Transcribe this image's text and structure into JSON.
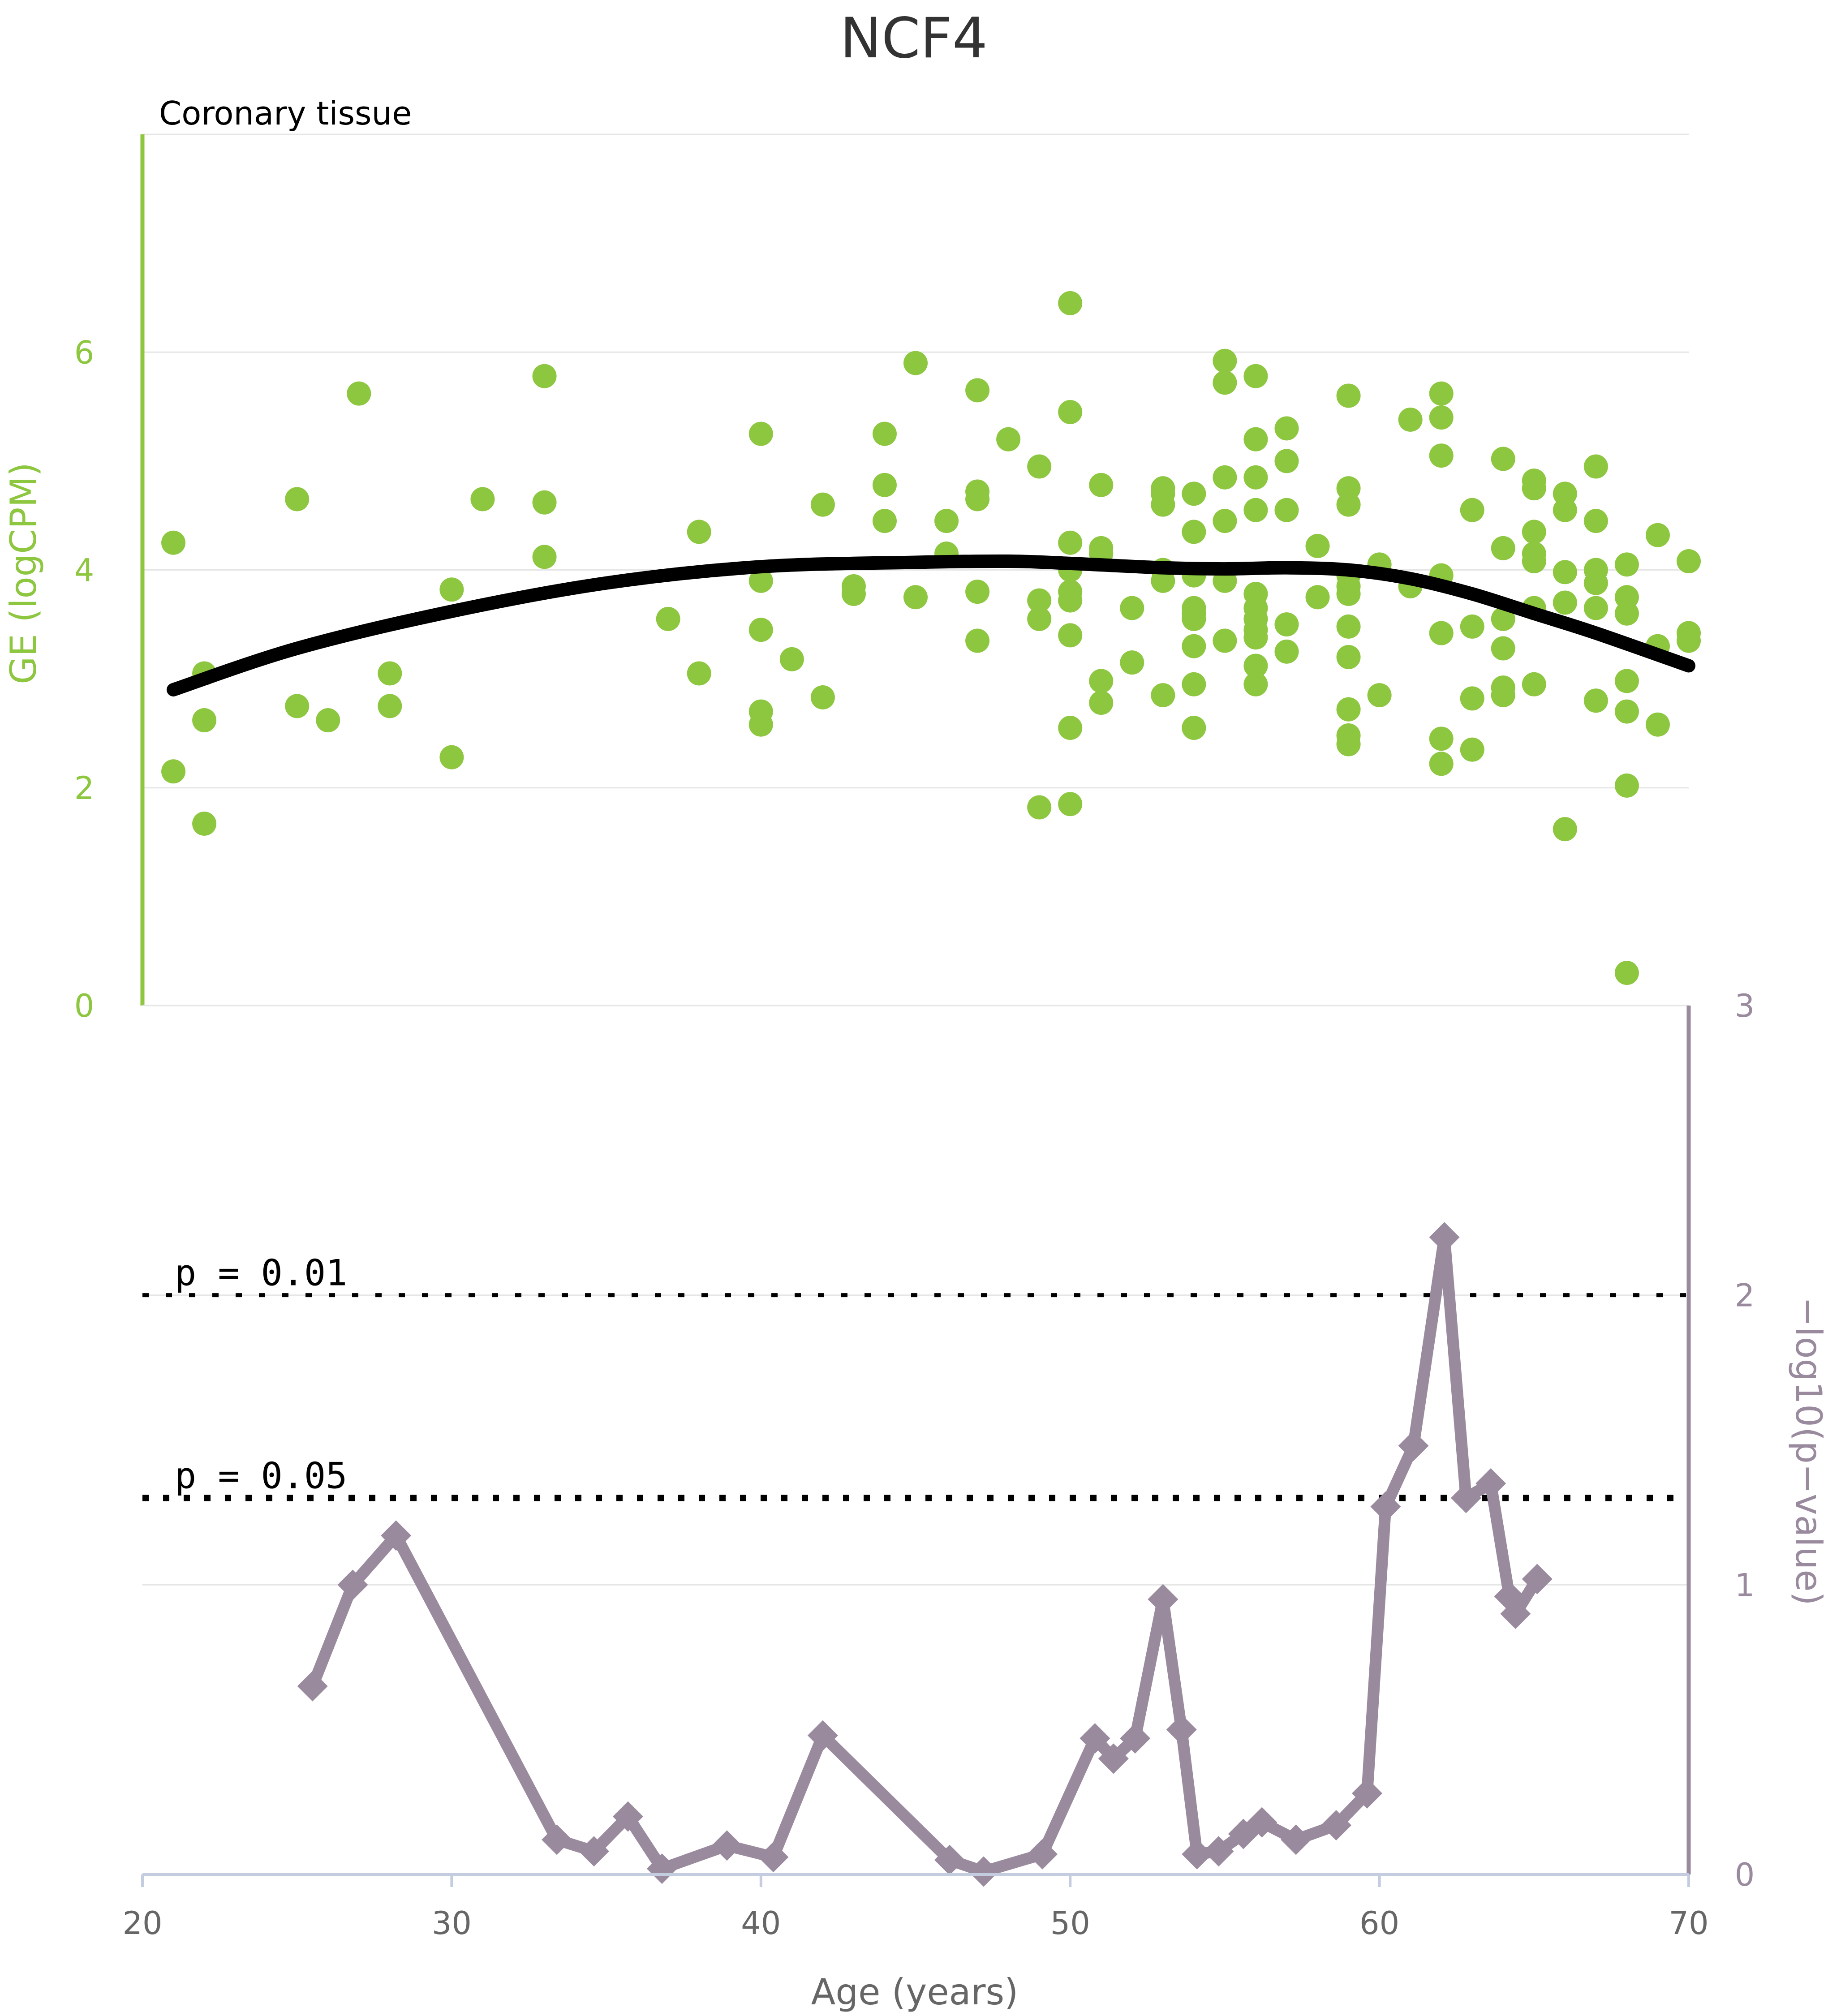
{
  "title": "NCF4",
  "panel_label": "Coronary tissue",
  "colors": {
    "ge": "#8DC63F",
    "pval": "#9A8A9E",
    "fit": "#000000",
    "grid": "#E6E6E6",
    "text": "#333333"
  },
  "chart_data": [
    {
      "type": "scatter",
      "ylabel": "GE (logCPM)",
      "xlim": [
        20,
        70
      ],
      "ylim": [
        0,
        8
      ],
      "yticks": [
        0,
        2,
        4,
        6
      ],
      "grid": true,
      "points": [
        [
          21,
          4.25
        ],
        [
          21,
          2.15
        ],
        [
          22,
          3.05
        ],
        [
          22,
          2.62
        ],
        [
          22,
          1.67
        ],
        [
          25,
          4.65
        ],
        [
          25,
          2.75
        ],
        [
          26,
          2.62
        ],
        [
          27,
          5.62
        ],
        [
          28,
          3.05
        ],
        [
          28,
          2.75
        ],
        [
          30,
          3.82
        ],
        [
          30,
          2.28
        ],
        [
          31,
          4.65
        ],
        [
          33,
          5.78
        ],
        [
          33,
          4.62
        ],
        [
          33,
          4.12
        ],
        [
          37,
          3.55
        ],
        [
          38,
          4.35
        ],
        [
          38,
          3.05
        ],
        [
          40,
          5.25
        ],
        [
          40,
          3.9
        ],
        [
          40,
          3.45
        ],
        [
          40,
          2.7
        ],
        [
          40,
          2.58
        ],
        [
          41,
          3.18
        ],
        [
          42,
          4.6
        ],
        [
          42,
          2.83
        ],
        [
          43,
          3.85
        ],
        [
          43,
          3.78
        ],
        [
          44,
          5.25
        ],
        [
          44,
          4.78
        ],
        [
          44,
          4.45
        ],
        [
          45,
          5.9
        ],
        [
          45,
          3.75
        ],
        [
          46,
          4.45
        ],
        [
          46,
          4.15
        ],
        [
          47,
          5.65
        ],
        [
          47,
          4.72
        ],
        [
          47,
          4.65
        ],
        [
          47,
          3.8
        ],
        [
          47,
          3.35
        ],
        [
          48,
          5.2
        ],
        [
          49,
          4.95
        ],
        [
          49,
          3.72
        ],
        [
          49,
          3.55
        ],
        [
          49,
          1.82
        ],
        [
          50,
          6.45
        ],
        [
          50,
          5.45
        ],
        [
          50,
          4.25
        ],
        [
          50,
          4.0
        ],
        [
          50,
          3.8
        ],
        [
          50,
          3.72
        ],
        [
          50,
          3.4
        ],
        [
          50,
          2.55
        ],
        [
          50,
          1.85
        ],
        [
          51,
          4.78
        ],
        [
          51,
          4.2
        ],
        [
          51,
          4.15
        ],
        [
          51,
          2.98
        ],
        [
          51,
          2.78
        ],
        [
          52,
          3.65
        ],
        [
          52,
          3.15
        ],
        [
          53,
          4.75
        ],
        [
          53,
          4.7
        ],
        [
          53,
          4.6
        ],
        [
          53,
          4.0
        ],
        [
          53,
          3.9
        ],
        [
          53,
          2.85
        ],
        [
          54,
          4.7
        ],
        [
          54,
          4.35
        ],
        [
          54,
          3.95
        ],
        [
          54,
          3.65
        ],
        [
          54,
          3.6
        ],
        [
          54,
          3.55
        ],
        [
          54,
          3.3
        ],
        [
          54,
          2.95
        ],
        [
          54,
          2.55
        ],
        [
          55,
          5.92
        ],
        [
          55,
          5.72
        ],
        [
          55,
          4.85
        ],
        [
          55,
          4.45
        ],
        [
          55,
          3.9
        ],
        [
          55,
          3.35
        ],
        [
          56,
          5.78
        ],
        [
          56,
          5.2
        ],
        [
          56,
          4.85
        ],
        [
          56,
          4.55
        ],
        [
          56,
          3.78
        ],
        [
          56,
          3.65
        ],
        [
          56,
          3.55
        ],
        [
          56,
          3.45
        ],
        [
          56,
          3.38
        ],
        [
          56,
          3.12
        ],
        [
          56,
          2.95
        ],
        [
          57,
          5.3
        ],
        [
          57,
          5.0
        ],
        [
          57,
          4.55
        ],
        [
          57,
          3.5
        ],
        [
          57,
          3.25
        ],
        [
          58,
          4.22
        ],
        [
          58,
          3.75
        ],
        [
          59,
          5.6
        ],
        [
          59,
          4.75
        ],
        [
          59,
          4.6
        ],
        [
          59,
          3.95
        ],
        [
          59,
          3.85
        ],
        [
          59,
          3.78
        ],
        [
          59,
          3.48
        ],
        [
          59,
          3.2
        ],
        [
          59,
          2.72
        ],
        [
          59,
          2.48
        ],
        [
          59,
          2.4
        ],
        [
          60,
          4.05
        ],
        [
          60,
          2.85
        ],
        [
          61,
          5.38
        ],
        [
          61,
          3.85
        ],
        [
          62,
          5.62
        ],
        [
          62,
          5.4
        ],
        [
          62,
          5.05
        ],
        [
          62,
          3.95
        ],
        [
          62,
          3.42
        ],
        [
          62,
          2.45
        ],
        [
          62,
          2.22
        ],
        [
          63,
          4.55
        ],
        [
          63,
          3.48
        ],
        [
          63,
          2.82
        ],
        [
          63,
          2.35
        ],
        [
          64,
          5.02
        ],
        [
          64,
          4.2
        ],
        [
          64,
          3.55
        ],
        [
          64,
          3.28
        ],
        [
          64,
          2.92
        ],
        [
          64,
          2.85
        ],
        [
          65,
          4.82
        ],
        [
          65,
          4.75
        ],
        [
          65,
          4.35
        ],
        [
          65,
          4.15
        ],
        [
          65,
          4.08
        ],
        [
          65,
          3.65
        ],
        [
          65,
          2.95
        ],
        [
          66,
          4.7
        ],
        [
          66,
          4.55
        ],
        [
          66,
          3.98
        ],
        [
          66,
          3.7
        ],
        [
          66,
          1.62
        ],
        [
          67,
          4.95
        ],
        [
          67,
          4.45
        ],
        [
          67,
          4.0
        ],
        [
          67,
          3.88
        ],
        [
          67,
          3.65
        ],
        [
          67,
          2.8
        ],
        [
          68,
          4.05
        ],
        [
          68,
          3.75
        ],
        [
          68,
          3.6
        ],
        [
          68,
          2.98
        ],
        [
          68,
          2.7
        ],
        [
          68,
          2.02
        ],
        [
          68,
          0.3
        ],
        [
          69,
          4.32
        ],
        [
          69,
          3.3
        ],
        [
          69,
          2.58
        ],
        [
          70,
          4.08
        ],
        [
          70,
          3.42
        ],
        [
          70,
          3.35
        ]
      ],
      "fit_line": [
        [
          21,
          2.9
        ],
        [
          25,
          3.28
        ],
        [
          30,
          3.62
        ],
        [
          35,
          3.88
        ],
        [
          40,
          4.03
        ],
        [
          45,
          4.07
        ],
        [
          48,
          4.08
        ],
        [
          50,
          4.06
        ],
        [
          53,
          4.02
        ],
        [
          55,
          4.01
        ],
        [
          57,
          4.02
        ],
        [
          59,
          4.0
        ],
        [
          61,
          3.92
        ],
        [
          63,
          3.78
        ],
        [
          65,
          3.6
        ],
        [
          67,
          3.42
        ],
        [
          70,
          3.12
        ]
      ]
    },
    {
      "type": "line",
      "xlabel": "Age (years)",
      "ylabel": "−log10(p−value)",
      "xlim": [
        20,
        70
      ],
      "ylim": [
        0,
        3
      ],
      "xticks": [
        20,
        30,
        40,
        50,
        60,
        70
      ],
      "yticks": [
        0,
        1,
        2,
        3
      ],
      "grid": true,
      "thresholds": [
        {
          "label": "p = 0.01",
          "value": 2.0
        },
        {
          "label": "p = 0.05",
          "value": 1.3
        }
      ],
      "points": [
        [
          25.5,
          0.65
        ],
        [
          26.8,
          1.0
        ],
        [
          28.2,
          1.17
        ],
        [
          33.4,
          0.12
        ],
        [
          34.6,
          0.08
        ],
        [
          35.7,
          0.2
        ],
        [
          36.8,
          0.02
        ],
        [
          38.9,
          0.1
        ],
        [
          40.4,
          0.06
        ],
        [
          42,
          0.48
        ],
        [
          46.1,
          0.05
        ],
        [
          47.2,
          0.01
        ],
        [
          49.1,
          0.07
        ],
        [
          50.8,
          0.47
        ],
        [
          51.4,
          0.4
        ],
        [
          52.1,
          0.47
        ],
        [
          53,
          0.95
        ],
        [
          53.6,
          0.5
        ],
        [
          54.1,
          0.07
        ],
        [
          54.8,
          0.08
        ],
        [
          55.6,
          0.14
        ],
        [
          56.2,
          0.18
        ],
        [
          57.3,
          0.12
        ],
        [
          58.6,
          0.17
        ],
        [
          59.6,
          0.28
        ],
        [
          60.2,
          1.27
        ],
        [
          61.1,
          1.48
        ],
        [
          62.1,
          2.2
        ],
        [
          62.8,
          1.3
        ],
        [
          63.6,
          1.35
        ],
        [
          64.2,
          0.96
        ],
        [
          64.4,
          0.9
        ],
        [
          65.1,
          1.02
        ]
      ]
    }
  ]
}
